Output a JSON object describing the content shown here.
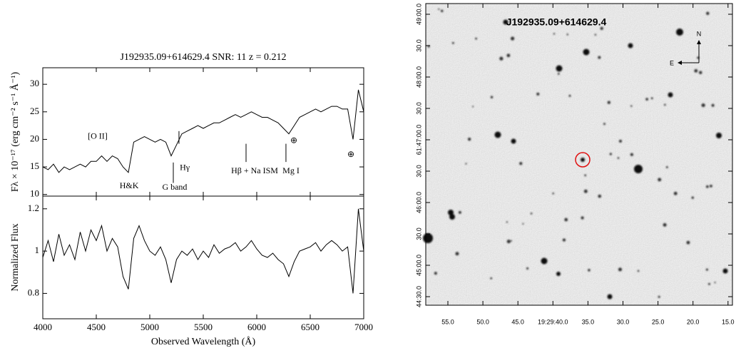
{
  "chart_data": [
    {
      "type": "line",
      "title": "J192935.09+614629.4 SNR: 11 z = 0.212",
      "ylabel": "Fλ × 10⁻¹⁷ (erg cm⁻² s⁻¹ Å⁻¹)",
      "x": [
        4000,
        4050,
        4100,
        4150,
        4200,
        4250,
        4300,
        4350,
        4400,
        4450,
        4500,
        4550,
        4600,
        4650,
        4700,
        4750,
        4800,
        4850,
        4900,
        4950,
        5000,
        5050,
        5100,
        5150,
        5200,
        5250,
        5300,
        5350,
        5400,
        5450,
        5500,
        5550,
        5600,
        5650,
        5700,
        5750,
        5800,
        5850,
        5900,
        5950,
        6000,
        6050,
        6100,
        6150,
        6200,
        6250,
        6300,
        6350,
        6400,
        6450,
        6500,
        6550,
        6600,
        6650,
        6700,
        6750,
        6800,
        6850,
        6900,
        6950,
        7000
      ],
      "values": [
        15,
        14.5,
        15.5,
        14,
        15,
        14.5,
        15,
        15.5,
        15,
        16,
        16,
        17,
        16,
        17,
        16.5,
        15,
        14,
        19.5,
        20,
        20.5,
        20,
        19.5,
        20,
        19.5,
        17,
        19,
        21,
        21.5,
        22,
        22.5,
        22,
        22.5,
        23,
        23,
        23.5,
        24,
        24.5,
        24,
        24.5,
        25,
        24.5,
        24,
        24,
        23.5,
        23,
        22,
        21,
        22.5,
        24,
        24.5,
        25,
        25.5,
        25,
        25.5,
        26,
        26,
        25.5,
        25.5,
        20,
        29,
        25
      ],
      "color": "#000000",
      "xlim": [
        4000,
        7000
      ],
      "xticks": [
        4000,
        4500,
        5000,
        5500,
        6000,
        6500,
        7000
      ],
      "show_xticklabels": false,
      "ylim": [
        9.7,
        33
      ],
      "yticks": [
        10,
        15,
        20,
        25,
        30
      ],
      "annotations": [
        {
          "text": "[O II]",
          "x": 4513,
          "y": 20.5
        },
        {
          "text": "H&K",
          "x": 4807,
          "y": 11.5
        },
        {
          "text": "G band",
          "x": 5233,
          "y": 11.2,
          "line_x": 5220,
          "line_y": [
            12.1,
            15.8
          ]
        },
        {
          "text": "Hγ",
          "x": 5327,
          "y": 14.8,
          "line_x": 5273,
          "line_y": [
            19.2,
            21.5
          ]
        },
        {
          "text": "Hβ + Na ISM",
          "x": 5980,
          "y": 14.2,
          "line_x": 5900,
          "line_y": [
            15.9,
            19.2
          ]
        },
        {
          "text": "Mg I",
          "x": 6320,
          "y": 14.2,
          "line_x": 6273,
          "line_y": [
            15.9,
            19.2
          ]
        },
        {
          "text": "⊕",
          "x": 6347,
          "y": 19.7
        },
        {
          "text": "⊕",
          "x": 6880,
          "y": 17.2
        }
      ]
    },
    {
      "type": "line",
      "ylabel": "Normalized Flux",
      "xlabel": "Observed Wavelength (Å)",
      "x": [
        4000,
        4050,
        4100,
        4150,
        4200,
        4250,
        4300,
        4350,
        4400,
        4450,
        4500,
        4550,
        4600,
        4650,
        4700,
        4750,
        4800,
        4850,
        4900,
        4950,
        5000,
        5050,
        5100,
        5150,
        5200,
        5250,
        5300,
        5350,
        5400,
        5450,
        5500,
        5550,
        5600,
        5650,
        5700,
        5750,
        5800,
        5850,
        5900,
        5950,
        6000,
        6050,
        6100,
        6150,
        6200,
        6250,
        6300,
        6350,
        6400,
        6450,
        6500,
        6550,
        6600,
        6650,
        6700,
        6750,
        6800,
        6850,
        6900,
        6950,
        7000
      ],
      "values": [
        0.97,
        1.05,
        0.95,
        1.08,
        0.98,
        1.03,
        0.96,
        1.09,
        1.0,
        1.1,
        1.05,
        1.12,
        1.0,
        1.06,
        1.02,
        0.88,
        0.82,
        1.06,
        1.12,
        1.05,
        1.0,
        0.98,
        1.02,
        0.96,
        0.85,
        0.96,
        1.0,
        0.98,
        1.01,
        0.96,
        1.0,
        0.97,
        1.03,
        0.99,
        1.01,
        1.02,
        1.04,
        1.0,
        1.02,
        1.05,
        1.01,
        0.98,
        0.97,
        0.99,
        0.96,
        0.94,
        0.88,
        0.95,
        1.0,
        1.01,
        1.02,
        1.04,
        1.0,
        1.03,
        1.05,
        1.03,
        1.0,
        1.02,
        0.8,
        1.2,
        1.0
      ],
      "color": "#000000",
      "xlim": [
        4000,
        7000
      ],
      "xticks": [
        4000,
        4500,
        5000,
        5500,
        6000,
        6500,
        7000
      ],
      "show_xticklabels": true,
      "ylim": [
        0.68,
        1.26
      ],
      "yticks": [
        0.8,
        1,
        1.2
      ]
    }
  ],
  "image": {
    "title": "J192935.09+614629.4",
    "north": "N",
    "east": "E",
    "xtick_labels": [
      "55.0",
      "50.0",
      "45.0",
      "19:29:40.0",
      "35.0",
      "30.0",
      "25.0",
      "20.0",
      "15.0"
    ],
    "ytick_labels": [
      "49:00.0",
      "30.0",
      "48:00.0",
      "30.0",
      "61:47:00.0",
      "30.0",
      "46:00.0",
      "30.0",
      "45:00.0",
      "44:30.0"
    ]
  }
}
